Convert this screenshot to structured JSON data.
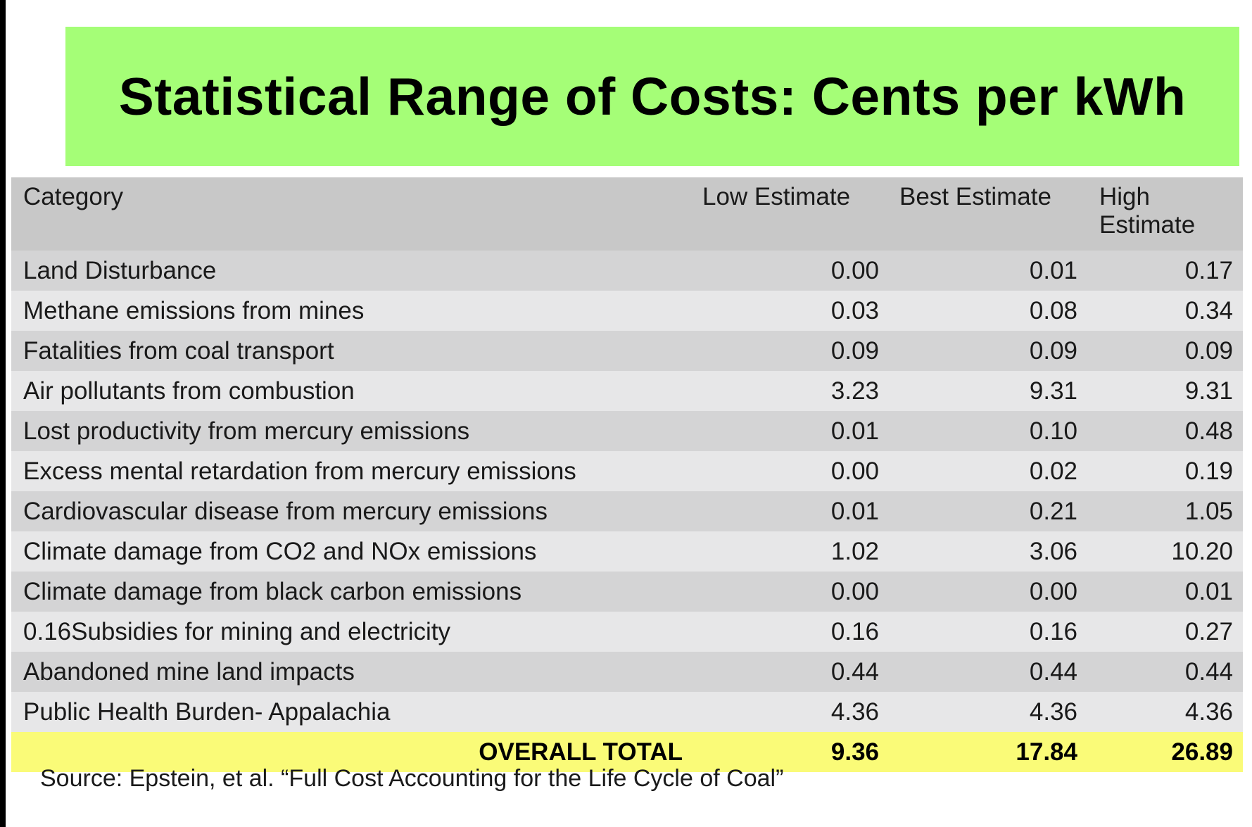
{
  "title": "Statistical Range of Costs: Cents per kWh",
  "colors": {
    "banner_bg": "#a5fe77",
    "header_bg": "#c8c8c8",
    "row_dark": "#d4d4d5",
    "row_light": "#e7e7e8",
    "total_bg": "#fafb78"
  },
  "table": {
    "headers": {
      "category": "Category",
      "low": "Low Estimate",
      "best": "Best Estimate",
      "high_line1": "High",
      "high_line2": "Estimate"
    },
    "rows": [
      {
        "category": "Land Disturbance",
        "low": "0.00",
        "best": "0.01",
        "high": "0.17"
      },
      {
        "category": "Methane emissions from mines",
        "low": "0.03",
        "best": "0.08",
        "high": "0.34"
      },
      {
        "category": "Fatalities from coal transport",
        "low": "0.09",
        "best": "0.09",
        "high": "0.09"
      },
      {
        "category": "Air pollutants from combustion",
        "low": "3.23",
        "best": "9.31",
        "high": "9.31"
      },
      {
        "category": "Lost productivity from mercury emissions",
        "low": "0.01",
        "best": "0.10",
        "high": "0.48"
      },
      {
        "category": "Excess mental retardation from mercury emissions",
        "low": "0.00",
        "best": "0.02",
        "high": "0.19"
      },
      {
        "category": "Cardiovascular disease from mercury emissions",
        "low": "0.01",
        "best": "0.21",
        "high": "1.05"
      },
      {
        "category": "Climate damage from CO2 and NOx emissions",
        "low": "1.02",
        "best": "3.06",
        "high": "10.20"
      },
      {
        "category": "Climate damage from black carbon emissions",
        "low": "0.00",
        "best": "0.00",
        "high": "0.01"
      },
      {
        "category": "0.16Subsidies for mining and electricity",
        "low": "0.16",
        "best": "0.16",
        "high": "0.27"
      },
      {
        "category": "Abandoned mine land impacts",
        "low": "0.44",
        "best": "0.44",
        "high": "0.44"
      },
      {
        "category": "Public Health Burden- Appalachia",
        "low": "4.36",
        "best": "4.36",
        "high": "4.36"
      }
    ],
    "total": {
      "label": "OVERALL TOTAL",
      "low": "9.36",
      "best": "17.84",
      "high": "26.89"
    }
  },
  "source": "Source: Epstein, et al. “Full Cost Accounting for the Life Cycle of Coal”"
}
